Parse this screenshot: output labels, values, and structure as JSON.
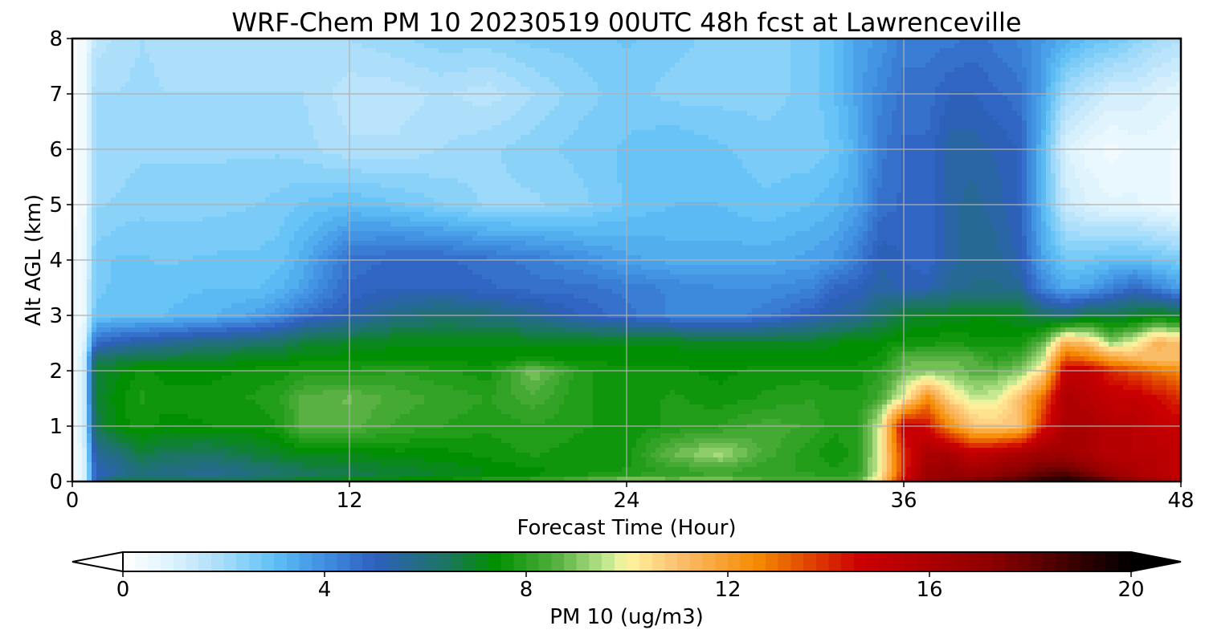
{
  "chart_data": {
    "type": "heatmap",
    "title": "WRF-Chem PM 10  20230519 00UTC 48h fcst at Lawrenceville",
    "xlabel": "Forecast Time (Hour)",
    "ylabel": "Alt AGL (km)",
    "xlim": [
      0,
      48
    ],
    "ylim": [
      0,
      8
    ],
    "x_ticks": [
      0,
      12,
      24,
      36,
      48
    ],
    "y_ticks": [
      0,
      1,
      2,
      3,
      4,
      5,
      6,
      7,
      8
    ],
    "grid": true,
    "colorbar": {
      "label": "PM 10  (ug/m3)",
      "range": [
        0,
        20
      ],
      "ticks": [
        0,
        4,
        8,
        12,
        16,
        20
      ],
      "extend": "both",
      "orientation": "horizontal",
      "stops": [
        {
          "v": 0,
          "c": "#ffffff"
        },
        {
          "v": 1,
          "c": "#dcf2fd"
        },
        {
          "v": 2,
          "c": "#a6dcfa"
        },
        {
          "v": 3,
          "c": "#5fc0f7"
        },
        {
          "v": 4,
          "c": "#3f8fe0"
        },
        {
          "v": 5,
          "c": "#2f5fbf"
        },
        {
          "v": 6.4,
          "c": "#1c7560"
        },
        {
          "v": 7.4,
          "c": "#009000"
        },
        {
          "v": 8.6,
          "c": "#55b040"
        },
        {
          "v": 9.6,
          "c": "#c0e890"
        },
        {
          "v": 10.0,
          "c": "#fff6a0"
        },
        {
          "v": 11.0,
          "c": "#fcc070"
        },
        {
          "v": 12.6,
          "c": "#f58a00"
        },
        {
          "v": 14.6,
          "c": "#cc0000"
        },
        {
          "v": 17.2,
          "c": "#8f0000"
        },
        {
          "v": 20,
          "c": "#000000"
        }
      ]
    },
    "x_hours": [
      0,
      0.5,
      1,
      2,
      3,
      4,
      6,
      8,
      9,
      10,
      12,
      14,
      16,
      18,
      20,
      22,
      24,
      26,
      28,
      30,
      32,
      33,
      34,
      35,
      36,
      37,
      38,
      39,
      40,
      41,
      42,
      43,
      44,
      45,
      46,
      47,
      48
    ],
    "y_km": [
      0,
      0.05,
      0.15,
      0.5,
      1.0,
      1.5,
      2.0,
      2.2,
      2.5,
      3.0,
      3.5,
      4.0,
      5.0,
      6.0,
      7.0,
      8.0
    ],
    "values": [
      [
        0.2,
        1.5,
        6.0,
        9.0,
        8.5,
        8.6,
        9.4,
        8.2,
        8.2,
        8.4,
        8.6,
        8.8,
        8.6,
        9.0,
        9.4,
        9.8,
        10.6,
        9.6,
        9.2,
        8.8,
        8.6,
        8.6,
        8.8,
        10.5,
        14.5,
        16.5,
        17.0,
        17.5,
        18.0,
        18.5,
        19.2,
        19.5,
        19.0,
        18.0,
        17.0,
        16.0,
        15.0
      ],
      [
        0.2,
        1.0,
        5.0,
        6.0,
        6.2,
        6.0,
        6.0,
        6.2,
        6.4,
        6.6,
        6.8,
        7.0,
        7.2,
        7.6,
        7.8,
        8.2,
        8.6,
        8.6,
        8.8,
        8.4,
        8.2,
        8.2,
        8.4,
        10.5,
        14.5,
        16.5,
        17.0,
        17.2,
        17.5,
        18.0,
        18.8,
        19.0,
        18.5,
        17.5,
        16.5,
        16.0,
        15.0
      ],
      [
        0.2,
        1.0,
        5.0,
        5.5,
        6.0,
        5.8,
        5.6,
        6.0,
        6.2,
        6.4,
        6.6,
        6.8,
        7.0,
        7.2,
        7.4,
        7.6,
        7.8,
        8.0,
        8.2,
        8.0,
        8.0,
        7.8,
        8.0,
        10.0,
        14.0,
        16.5,
        17.0,
        16.5,
        17.0,
        17.5,
        18.0,
        18.2,
        17.5,
        16.5,
        16.0,
        15.5,
        15.0
      ],
      [
        0.2,
        1.0,
        5.5,
        6.0,
        6.8,
        6.5,
        6.4,
        6.8,
        7.0,
        7.2,
        7.2,
        7.4,
        7.4,
        7.6,
        7.8,
        7.6,
        7.6,
        8.8,
        9.4,
        8.4,
        7.8,
        7.6,
        7.8,
        10.0,
        14.0,
        16.0,
        16.0,
        15.0,
        15.5,
        16.0,
        16.5,
        16.5,
        16.0,
        15.5,
        15.5,
        15.5,
        15.0
      ],
      [
        0.2,
        1.2,
        6.5,
        7.4,
        7.6,
        7.4,
        7.5,
        7.5,
        7.8,
        8.6,
        8.6,
        8.2,
        8.0,
        7.8,
        8.0,
        7.8,
        7.6,
        7.8,
        8.0,
        8.4,
        8.2,
        7.8,
        8.0,
        9.8,
        15.0,
        14.5,
        12.5,
        11.0,
        10.8,
        11.0,
        14.0,
        16.0,
        16.0,
        15.5,
        15.5,
        15.0,
        14.8
      ],
      [
        0.2,
        1.2,
        6.8,
        7.4,
        7.8,
        7.6,
        7.6,
        7.8,
        8.0,
        8.6,
        8.8,
        8.4,
        8.2,
        8.0,
        8.4,
        7.8,
        7.6,
        7.8,
        7.6,
        7.8,
        8.0,
        7.8,
        7.8,
        8.4,
        10.0,
        12.5,
        10.5,
        9.6,
        9.8,
        11.0,
        13.0,
        16.0,
        15.5,
        15.0,
        15.0,
        14.5,
        14.0
      ],
      [
        0.2,
        1.2,
        6.8,
        7.2,
        7.6,
        7.4,
        7.4,
        7.6,
        7.6,
        7.8,
        7.8,
        8.0,
        7.8,
        7.6,
        9.0,
        7.8,
        7.6,
        7.6,
        7.4,
        7.6,
        7.6,
        7.6,
        7.6,
        8.0,
        8.8,
        9.0,
        9.0,
        8.6,
        8.6,
        9.0,
        10.4,
        15.0,
        15.0,
        14.0,
        13.5,
        13.0,
        12.5
      ],
      [
        0.2,
        1.2,
        6.4,
        6.6,
        6.8,
        6.8,
        7.0,
        7.2,
        7.2,
        7.4,
        7.4,
        7.4,
        7.4,
        7.4,
        7.6,
        7.4,
        7.4,
        7.4,
        7.4,
        7.4,
        7.4,
        7.4,
        7.4,
        7.6,
        8.6,
        8.8,
        8.8,
        8.6,
        8.0,
        8.4,
        9.6,
        13.5,
        13.0,
        12.0,
        11.5,
        11.0,
        11.0
      ],
      [
        0.2,
        0.8,
        4.8,
        5.2,
        5.4,
        5.6,
        6.0,
        6.2,
        6.4,
        6.8,
        7.0,
        7.2,
        7.2,
        7.2,
        7.2,
        7.2,
        7.2,
        7.2,
        7.0,
        7.0,
        7.0,
        7.2,
        7.4,
        7.4,
        7.6,
        7.6,
        7.8,
        7.6,
        7.6,
        7.6,
        8.6,
        11.5,
        11.0,
        9.2,
        10.0,
        11.5,
        11.0
      ],
      [
        0.2,
        0.6,
        2.8,
        2.9,
        2.9,
        3.0,
        3.2,
        3.6,
        4.0,
        4.6,
        5.2,
        5.8,
        6.2,
        6.0,
        5.6,
        5.0,
        4.6,
        4.2,
        4.0,
        4.4,
        5.0,
        5.4,
        5.6,
        6.2,
        6.8,
        7.0,
        7.0,
        7.2,
        7.2,
        7.0,
        6.4,
        6.0,
        6.6,
        6.6,
        6.8,
        7.2,
        6.8
      ],
      [
        0.2,
        0.5,
        2.7,
        2.8,
        2.9,
        2.9,
        3.0,
        3.0,
        3.2,
        3.6,
        4.8,
        5.0,
        5.0,
        4.8,
        4.6,
        4.6,
        4.4,
        4.2,
        4.0,
        4.0,
        4.2,
        4.8,
        5.0,
        5.4,
        5.2,
        5.2,
        5.6,
        5.8,
        5.8,
        5.6,
        4.2,
        3.4,
        3.6,
        4.2,
        4.8,
        4.2,
        3.6
      ],
      [
        0.2,
        0.5,
        2.6,
        2.8,
        2.8,
        2.7,
        2.8,
        2.8,
        2.9,
        3.4,
        4.6,
        4.8,
        4.8,
        4.6,
        4.4,
        4.0,
        3.6,
        3.4,
        3.4,
        3.4,
        3.6,
        3.8,
        4.4,
        5.2,
        5.0,
        4.8,
        5.4,
        5.6,
        5.6,
        5.2,
        3.6,
        2.8,
        2.8,
        3.0,
        3.0,
        2.8,
        2.6
      ],
      [
        0.2,
        0.4,
        2.2,
        2.3,
        2.4,
        2.4,
        2.4,
        2.5,
        2.6,
        2.8,
        3.0,
        2.8,
        2.5,
        2.2,
        2.2,
        2.4,
        2.8,
        3.0,
        3.0,
        2.8,
        3.0,
        3.2,
        3.6,
        4.6,
        4.8,
        4.8,
        5.4,
        5.6,
        5.4,
        5.0,
        3.2,
        1.4,
        1.0,
        0.8,
        0.8,
        0.6,
        0.4
      ],
      [
        0.2,
        0.4,
        2.0,
        2.1,
        2.2,
        2.2,
        2.2,
        2.2,
        2.2,
        2.1,
        1.8,
        1.8,
        2.0,
        2.2,
        2.4,
        2.6,
        2.8,
        3.0,
        2.8,
        2.6,
        2.6,
        2.8,
        3.4,
        4.4,
        4.8,
        4.8,
        5.4,
        5.4,
        5.2,
        5.0,
        3.2,
        1.0,
        0.6,
        0.4,
        0.6,
        0.6,
        0.4
      ],
      [
        0.2,
        0.4,
        2.0,
        2.0,
        2.1,
        2.0,
        2.0,
        2.0,
        2.0,
        2.0,
        1.6,
        1.6,
        1.8,
        1.6,
        2.0,
        2.4,
        2.6,
        2.4,
        2.4,
        2.4,
        2.6,
        3.0,
        3.6,
        4.2,
        4.6,
        4.6,
        5.0,
        5.0,
        4.8,
        4.6,
        3.6,
        2.0,
        1.6,
        1.2,
        1.2,
        1.0,
        0.8
      ],
      [
        0.2,
        0.4,
        1.6,
        1.8,
        2.0,
        1.9,
        1.8,
        1.8,
        1.8,
        1.8,
        2.0,
        2.2,
        2.4,
        2.4,
        2.6,
        2.6,
        2.8,
        2.6,
        2.4,
        2.4,
        2.6,
        3.0,
        3.6,
        3.8,
        4.4,
        4.4,
        4.4,
        4.6,
        4.4,
        4.2,
        3.8,
        3.4,
        3.0,
        2.8,
        2.4,
        2.0,
        1.8
      ]
    ]
  }
}
